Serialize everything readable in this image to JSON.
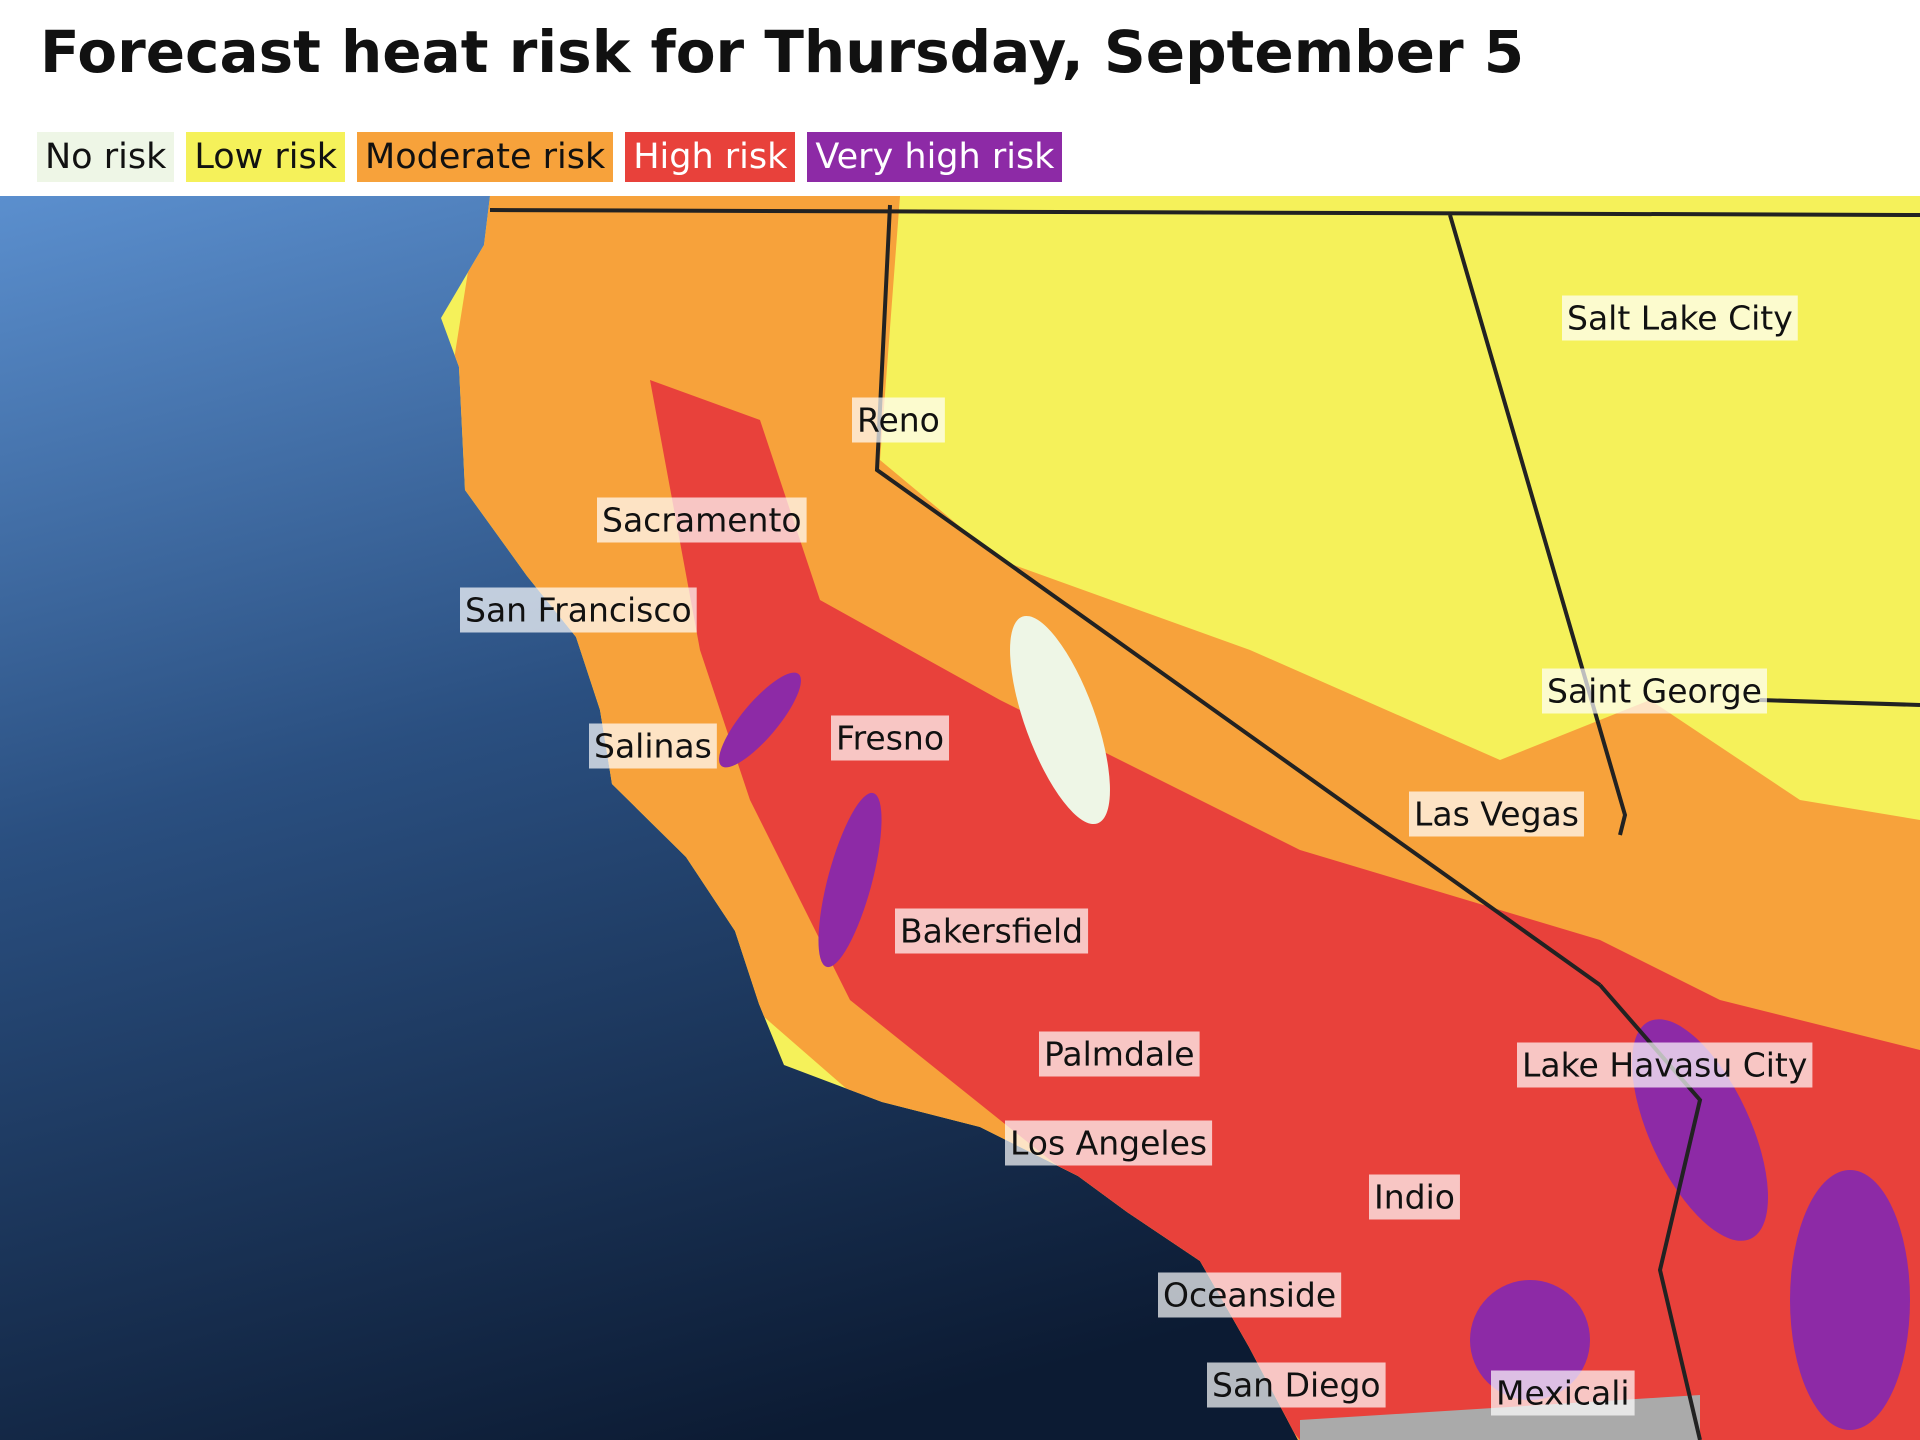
{
  "header": {
    "title": "Forecast heat risk for Thursday, September 5"
  },
  "legend": [
    {
      "label": "No risk",
      "color": "#eef6e6"
    },
    {
      "label": "Low risk",
      "color": "#f5f15a"
    },
    {
      "label": "Moderate risk",
      "color": "#f7a23b"
    },
    {
      "label": "High risk",
      "color": "#e8413b"
    },
    {
      "label": "Very high risk",
      "color": "#8d2aa6"
    }
  ],
  "cities": [
    "Salt Lake City",
    "Reno",
    "Sacramento",
    "San Francisco",
    "Saint George",
    "Salinas",
    "Fresno",
    "Las Vegas",
    "Bakersfield",
    "Palmdale",
    "Lake Havasu City",
    "Los Angeles",
    "Indio",
    "Oceanside",
    "San Diego",
    "Mexicali"
  ]
}
